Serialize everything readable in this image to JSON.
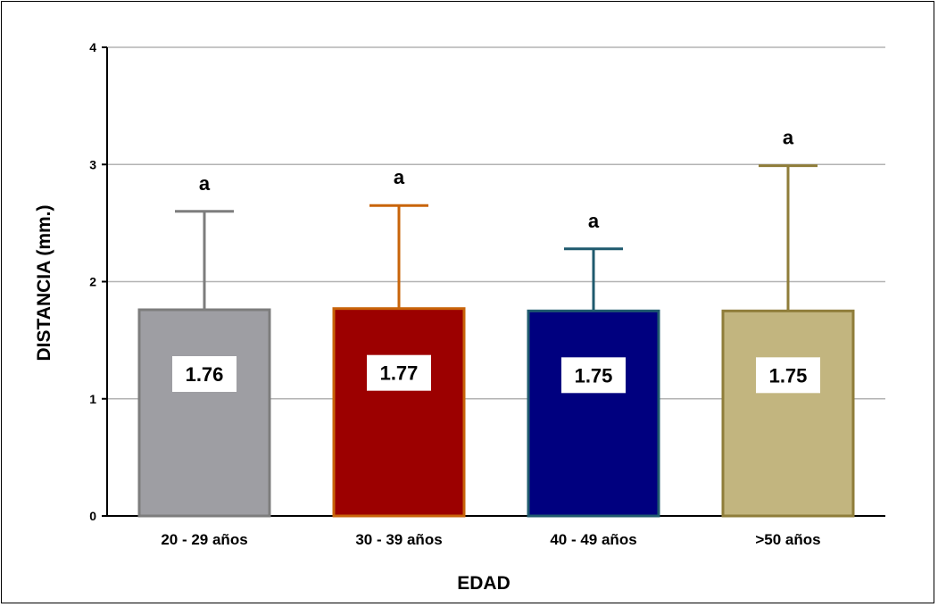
{
  "chart_data": {
    "type": "bar",
    "xlabel": "EDAD",
    "ylabel": "DISTANCIA (mm.)",
    "ylim": [
      0,
      4
    ],
    "yticks": [
      "0",
      "1",
      "2",
      "3",
      "4"
    ],
    "grid": true,
    "categories": [
      "20 - 29 años",
      "30 - 39 años",
      "40 - 49 años",
      ">50 años"
    ],
    "values": [
      1.76,
      1.77,
      1.75,
      1.75
    ],
    "value_labels": [
      "1.76",
      "1.77",
      "1.75",
      "1.75"
    ],
    "error_upper": [
      2.6,
      2.65,
      2.28,
      2.99
    ],
    "significance_letters": [
      "a",
      "a",
      "a",
      "a"
    ],
    "colors": {
      "fill": [
        "#9e9ea3",
        "#9c0000",
        "#00007f",
        "#c2b57f"
      ],
      "stroke": [
        "#7d7d7d",
        "#c8640a",
        "#1f5a6e",
        "#8f7d3a"
      ]
    }
  }
}
